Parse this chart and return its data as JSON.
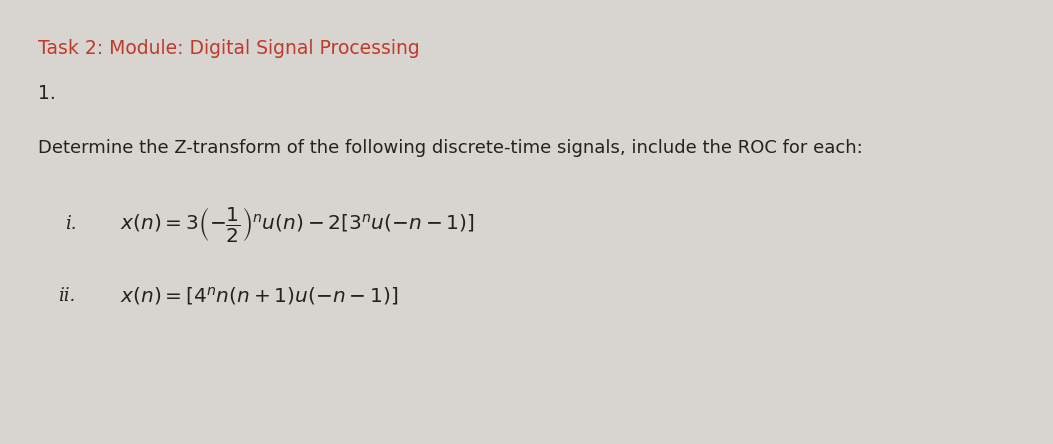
{
  "background_color": "#d8d5d0",
  "title_text": "Task 2: Module: Digital Signal Processing",
  "title_color": "#c0392b",
  "title_fontsize": 13.5,
  "number_text": "1.",
  "number_fontsize": 13.5,
  "instruction_text": "Determine the Z-transform of the following discrete-time signals, include the ROC for each:",
  "instruction_fontsize": 13,
  "eq1_label": "i.",
  "eq1_formula": "$x(n) = 3\\left(-\\dfrac{1}{2}\\right)^{n} u(n) - 2[3^{n}u(-n-1)]$",
  "eq2_label": "ii.",
  "eq2_formula": "$x(n) = [4^{n}n(n+1)u(-n-1)]$",
  "text_color": "#222222",
  "formula_fontsize": 14.5,
  "label_fontsize": 13
}
